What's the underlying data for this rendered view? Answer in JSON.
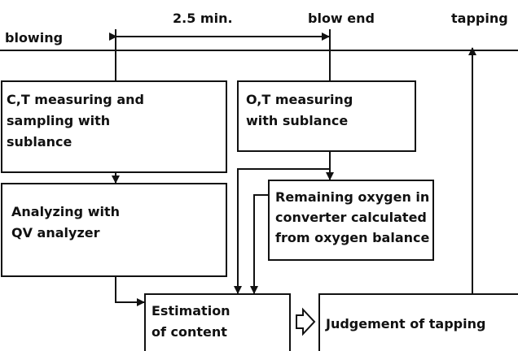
{
  "timeline": {
    "start": "blowing",
    "interval": "2.5 min.",
    "end": "blow end",
    "tapping": "tapping"
  },
  "nodes": [
    {
      "lines": [
        "C,T measuring and",
        "sampling with",
        "sublance"
      ]
    },
    {
      "lines": [
        "O,T measuring",
        "with sublance"
      ]
    },
    {
      "lines": [
        "Analyzing with",
        "QV analyzer"
      ]
    },
    {
      "lines": [
        "Remaining oxygen in",
        "converter calculated",
        "from oxygen balance"
      ]
    },
    {
      "lines": [
        "Estimation",
        "of content"
      ]
    },
    {
      "lines": [
        "Judgement of tapping"
      ]
    }
  ]
}
